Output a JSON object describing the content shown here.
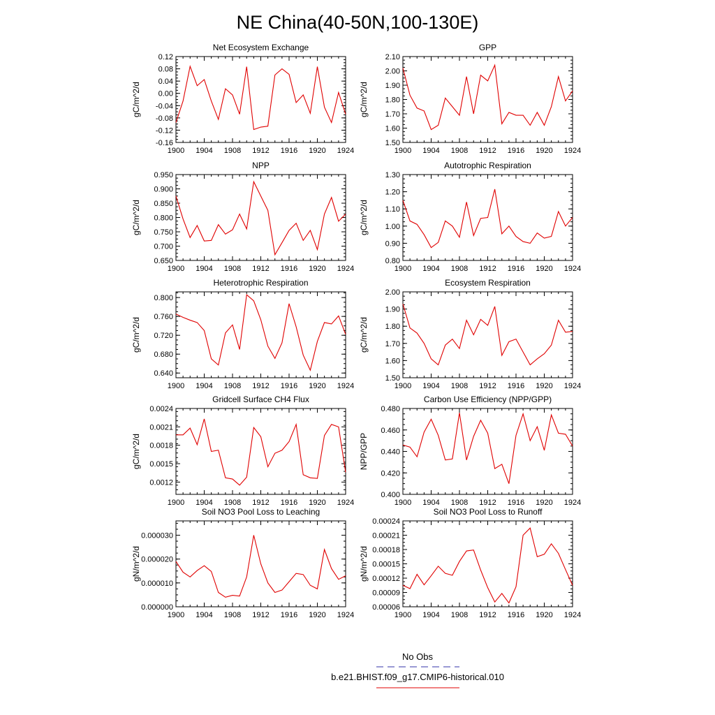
{
  "title": "NE China(40-50N,100-130E)",
  "legend": {
    "placement": "bottom-center",
    "entries": [
      {
        "label": "No Obs",
        "color": "#3333aa",
        "style": "dashed"
      },
      {
        "label": "b.e21.BHIST.f09_g17.CMIP6-historical.010",
        "color": "#e00000",
        "style": "solid"
      }
    ]
  },
  "series_color": "#e00000",
  "chart_data": [
    {
      "type": "line",
      "title": "Net Ecosystem Exchange",
      "ylabel": "gC/m^2/d",
      "xlim": [
        1900,
        1924
      ],
      "xticks": [
        "1900",
        "1904",
        "1908",
        "1912",
        "1916",
        "1920",
        "1924"
      ],
      "ylim": [
        -0.16,
        0.12
      ],
      "yticks": [
        "-0.16",
        "-0.12",
        "-0.08",
        "-0.04",
        "0.00",
        "0.04",
        "0.08",
        "0.12"
      ],
      "x": [
        1900,
        1901,
        1902,
        1903,
        1904,
        1905,
        1906,
        1907,
        1908,
        1909,
        1910,
        1911,
        1912,
        1913,
        1914,
        1915,
        1916,
        1917,
        1918,
        1919,
        1920,
        1921,
        1922,
        1923,
        1924
      ],
      "values": [
        -0.095,
        -0.025,
        0.088,
        0.025,
        0.045,
        -0.025,
        -0.085,
        0.015,
        -0.005,
        -0.068,
        0.087,
        -0.118,
        -0.11,
        -0.107,
        0.06,
        0.08,
        0.062,
        -0.03,
        -0.005,
        -0.065,
        0.087,
        -0.045,
        -0.095,
        0.003,
        -0.068
      ]
    },
    {
      "type": "line",
      "title": "GPP",
      "ylabel": "gC/m^2/d",
      "xlim": [
        1900,
        1924
      ],
      "xticks": [
        "1900",
        "1904",
        "1908",
        "1912",
        "1916",
        "1920",
        "1924"
      ],
      "ylim": [
        1.5,
        2.1
      ],
      "yticks": [
        "1.50",
        "1.60",
        "1.70",
        "1.80",
        "1.90",
        "2.00",
        "2.10"
      ],
      "x": [
        1900,
        1901,
        1902,
        1903,
        1904,
        1905,
        1906,
        1907,
        1908,
        1909,
        1910,
        1911,
        1912,
        1913,
        1914,
        1915,
        1916,
        1917,
        1918,
        1919,
        1920,
        1921,
        1922,
        1923,
        1924
      ],
      "values": [
        2.02,
        1.83,
        1.74,
        1.72,
        1.59,
        1.62,
        1.81,
        1.75,
        1.69,
        1.96,
        1.7,
        1.97,
        1.93,
        2.04,
        1.63,
        1.71,
        1.69,
        1.69,
        1.62,
        1.71,
        1.62,
        1.75,
        1.96,
        1.79,
        1.86
      ]
    },
    {
      "type": "line",
      "title": "NPP",
      "ylabel": "gC/m^2/d",
      "xlim": [
        1900,
        1924
      ],
      "xticks": [
        "1900",
        "1904",
        "1908",
        "1912",
        "1916",
        "1920",
        "1924"
      ],
      "ylim": [
        0.65,
        0.95
      ],
      "yticks": [
        "0.650",
        "0.700",
        "0.750",
        "0.800",
        "0.850",
        "0.900",
        "0.950"
      ],
      "x": [
        1900,
        1901,
        1902,
        1903,
        1904,
        1905,
        1906,
        1907,
        1908,
        1909,
        1910,
        1911,
        1912,
        1913,
        1914,
        1915,
        1916,
        1917,
        1918,
        1919,
        1920,
        1921,
        1922,
        1923,
        1924
      ],
      "values": [
        0.875,
        0.795,
        0.73,
        0.772,
        0.718,
        0.72,
        0.775,
        0.742,
        0.757,
        0.812,
        0.76,
        0.925,
        0.875,
        0.825,
        0.67,
        0.712,
        0.755,
        0.78,
        0.72,
        0.755,
        0.688,
        0.812,
        0.87,
        0.787,
        0.812
      ]
    },
    {
      "type": "line",
      "title": "Autotrophic Respiration",
      "ylabel": "gC/m^2/d",
      "xlim": [
        1900,
        1924
      ],
      "xticks": [
        "1900",
        "1904",
        "1908",
        "1912",
        "1916",
        "1920",
        "1924"
      ],
      "ylim": [
        0.8,
        1.3
      ],
      "yticks": [
        "0.80",
        "0.90",
        "1.00",
        "1.10",
        "1.20",
        "1.30"
      ],
      "x": [
        1900,
        1901,
        1902,
        1903,
        1904,
        1905,
        1906,
        1907,
        1908,
        1909,
        1910,
        1911,
        1912,
        1913,
        1914,
        1915,
        1916,
        1917,
        1918,
        1919,
        1920,
        1921,
        1922,
        1923,
        1924
      ],
      "values": [
        1.15,
        1.03,
        1.01,
        0.95,
        0.875,
        0.905,
        1.03,
        1.0,
        0.935,
        1.14,
        0.945,
        1.045,
        1.05,
        1.215,
        0.955,
        1.0,
        0.94,
        0.91,
        0.9,
        0.96,
        0.93,
        0.94,
        1.085,
        1.0,
        1.05
      ]
    },
    {
      "type": "line",
      "title": "Heterotrophic Respiration",
      "ylabel": "gC/m^2/d",
      "xlim": [
        1900,
        1924
      ],
      "xticks": [
        "1900",
        "1904",
        "1908",
        "1912",
        "1916",
        "1920",
        "1924"
      ],
      "ylim": [
        0.63,
        0.812
      ],
      "yticks": [
        "0.640",
        "0.680",
        "0.720",
        "0.760",
        "0.800"
      ],
      "x": [
        1900,
        1901,
        1902,
        1903,
        1904,
        1905,
        1906,
        1907,
        1908,
        1909,
        1910,
        1911,
        1912,
        1913,
        1914,
        1915,
        1916,
        1917,
        1918,
        1919,
        1920,
        1921,
        1922,
        1923,
        1924
      ],
      "values": [
        0.765,
        0.758,
        0.752,
        0.747,
        0.73,
        0.67,
        0.657,
        0.725,
        0.742,
        0.69,
        0.806,
        0.793,
        0.753,
        0.697,
        0.671,
        0.704,
        0.787,
        0.738,
        0.678,
        0.646,
        0.707,
        0.747,
        0.744,
        0.761,
        0.722
      ]
    },
    {
      "type": "line",
      "title": "Ecosystem Respiration",
      "ylabel": "gC/m^2/d",
      "xlim": [
        1900,
        1924
      ],
      "xticks": [
        "1900",
        "1904",
        "1908",
        "1912",
        "1916",
        "1920",
        "1924"
      ],
      "ylim": [
        1.5,
        2.0
      ],
      "yticks": [
        "1.50",
        "1.60",
        "1.70",
        "1.80",
        "1.90",
        "2.00"
      ],
      "x": [
        1900,
        1901,
        1902,
        1903,
        1904,
        1905,
        1906,
        1907,
        1908,
        1909,
        1910,
        1911,
        1912,
        1913,
        1914,
        1915,
        1916,
        1917,
        1918,
        1919,
        1920,
        1921,
        1922,
        1923,
        1924
      ],
      "values": [
        1.93,
        1.79,
        1.76,
        1.7,
        1.61,
        1.575,
        1.69,
        1.725,
        1.67,
        1.835,
        1.75,
        1.84,
        1.805,
        1.915,
        1.63,
        1.71,
        1.725,
        1.65,
        1.575,
        1.61,
        1.64,
        1.69,
        1.835,
        1.765,
        1.77
      ]
    },
    {
      "type": "line",
      "title": "Gridcell Surface CH4 Flux",
      "ylabel": "gC/m^2/d",
      "xlim": [
        1900,
        1924
      ],
      "xticks": [
        "1900",
        "1904",
        "1908",
        "1912",
        "1916",
        "1920",
        "1924"
      ],
      "ylim": [
        0.001,
        0.0024
      ],
      "yticks": [
        "0.0012",
        "0.0015",
        "0.0018",
        "0.0021",
        "0.0024"
      ],
      "x": [
        1900,
        1901,
        1902,
        1903,
        1904,
        1905,
        1906,
        1907,
        1908,
        1909,
        1910,
        1911,
        1912,
        1913,
        1914,
        1915,
        1916,
        1917,
        1918,
        1919,
        1920,
        1921,
        1922,
        1923,
        1924
      ],
      "values": [
        0.00197,
        0.00197,
        0.00208,
        0.00181,
        0.00223,
        0.0017,
        0.00172,
        0.00127,
        0.00125,
        0.00115,
        0.00128,
        0.00209,
        0.00194,
        0.00145,
        0.00167,
        0.00172,
        0.00186,
        0.00214,
        0.00132,
        0.00127,
        0.00126,
        0.00196,
        0.00214,
        0.0021,
        0.00136
      ]
    },
    {
      "type": "line",
      "title": "Carbon Use Efficiency (NPP/GPP)",
      "ylabel": "NPP/GPP",
      "xlim": [
        1900,
        1924
      ],
      "xticks": [
        "1900",
        "1904",
        "1908",
        "1912",
        "1916",
        "1920",
        "1924"
      ],
      "ylim": [
        0.4,
        0.48
      ],
      "yticks": [
        "0.400",
        "0.420",
        "0.440",
        "0.460",
        "0.480"
      ],
      "x": [
        1900,
        1901,
        1902,
        1903,
        1904,
        1905,
        1906,
        1907,
        1908,
        1909,
        1910,
        1911,
        1912,
        1913,
        1914,
        1915,
        1916,
        1917,
        1918,
        1919,
        1920,
        1921,
        1922,
        1923,
        1924
      ],
      "values": [
        0.446,
        0.444,
        0.435,
        0.458,
        0.47,
        0.455,
        0.432,
        0.433,
        0.476,
        0.432,
        0.454,
        0.469,
        0.457,
        0.424,
        0.428,
        0.41,
        0.455,
        0.475,
        0.45,
        0.463,
        0.441,
        0.474,
        0.457,
        0.456,
        0.445
      ]
    },
    {
      "type": "line",
      "title": "Soil NO3 Pool Loss to Leaching",
      "ylabel": "gN/m^2/d",
      "xlim": [
        1900,
        1924
      ],
      "xticks": [
        "1900",
        "1904",
        "1908",
        "1912",
        "1916",
        "1920",
        "1924"
      ],
      "ylim": [
        0.0,
        3.6e-05
      ],
      "yticks": [
        "0.000000",
        "0.000010",
        "0.000020",
        "0.000030"
      ],
      "x": [
        1900,
        1901,
        1902,
        1903,
        1904,
        1905,
        1906,
        1907,
        1908,
        1909,
        1910,
        1911,
        1912,
        1913,
        1914,
        1915,
        1916,
        1917,
        1918,
        1919,
        1920,
        1921,
        1922,
        1923,
        1924
      ],
      "values": [
        1.9e-05,
        1.45e-05,
        1.25e-05,
        1.52e-05,
        1.72e-05,
        1.48e-05,
        6e-06,
        4e-06,
        4.8e-06,
        4.5e-06,
        1.25e-05,
        3e-05,
        1.8e-05,
        1e-05,
        6e-06,
        7e-06,
        1.05e-05,
        1.4e-05,
        1.35e-05,
        9e-06,
        7.5e-06,
        2.4e-05,
        1.6e-05,
        1.15e-05,
        1.3e-05
      ]
    },
    {
      "type": "line",
      "title": "Soil NO3 Pool Loss to Runoff",
      "ylabel": "gN/m^2/d",
      "xlim": [
        1900,
        1924
      ],
      "xticks": [
        "1900",
        "1904",
        "1908",
        "1912",
        "1916",
        "1920",
        "1924"
      ],
      "ylim": [
        6e-05,
        0.00024
      ],
      "yticks": [
        "0.00006",
        "0.00009",
        "0.00012",
        "0.00015",
        "0.00018",
        "0.00021",
        "0.00024"
      ],
      "x": [
        1900,
        1901,
        1902,
        1903,
        1904,
        1905,
        1906,
        1907,
        1908,
        1909,
        1910,
        1911,
        1912,
        1913,
        1914,
        1915,
        1916,
        1917,
        1918,
        1919,
        1920,
        1921,
        1922,
        1923,
        1924
      ],
      "values": [
        0.000105,
        9.8e-05,
        0.000128,
        0.000106,
        0.000125,
        0.000145,
        0.00013,
        0.000126,
        0.000155,
        0.000177,
        0.000179,
        0.000137,
        0.0001,
        7e-05,
        8.8e-05,
        6.8e-05,
        0.000102,
        0.00021,
        0.000225,
        0.000165,
        0.00017,
        0.000192,
        0.000172,
        0.000138,
        0.000105
      ]
    }
  ]
}
